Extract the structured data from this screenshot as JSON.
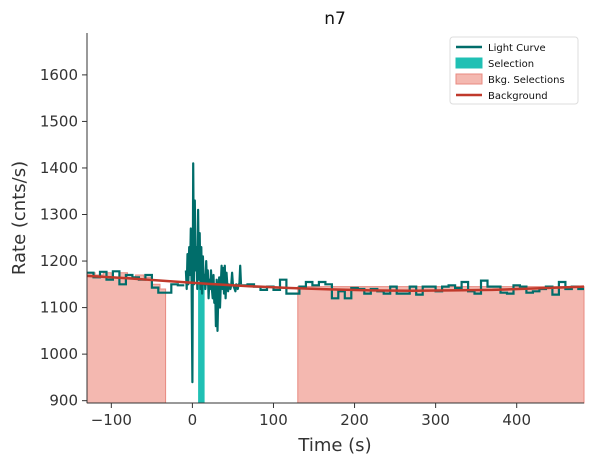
{
  "chart_data": {
    "type": "line",
    "title": "n7",
    "xlabel": "Time (s)",
    "ylabel": "Rate (cnts/s)",
    "xlim": [
      -130,
      483
    ],
    "ylim": [
      895,
      1690
    ],
    "xticks": [
      -100,
      0,
      100,
      200,
      300,
      400
    ],
    "yticks": [
      900,
      1000,
      1100,
      1200,
      1300,
      1400,
      1500,
      1600
    ],
    "grid": false,
    "legend_position": "top-right",
    "legend": [
      {
        "label": "Light Curve",
        "kind": "line",
        "color": "#006d6a"
      },
      {
        "label": "Selection",
        "kind": "patch",
        "color": "#20c0b4"
      },
      {
        "label": "Bkg. Selections",
        "kind": "patch",
        "color": "#f4b8b0"
      },
      {
        "label": "Background",
        "kind": "line",
        "color": "#c0392b"
      }
    ],
    "light_curve": {
      "coarse_before": {
        "edges": [
          -130,
          -122,
          -114,
          -106,
          -98,
          -90,
          -82,
          -74,
          -66,
          -58,
          -50,
          -42,
          -34,
          -26,
          -18,
          -10
        ],
        "rates": [
          1175,
          1165,
          1177,
          1160,
          1178,
          1150,
          1170,
          1165,
          1160,
          1170,
          1143,
          1132,
          1132,
          1150,
          1148
        ]
      },
      "fine": {
        "x": [
          -8,
          -7,
          -6,
          -5,
          -4,
          -3,
          -2,
          -1,
          0,
          1,
          2,
          3,
          4,
          5,
          6,
          7,
          8,
          9,
          10,
          11,
          12,
          13,
          14,
          15,
          16,
          17,
          18,
          19,
          20,
          21,
          22,
          23,
          24,
          25,
          26,
          27,
          28,
          29,
          30,
          31,
          32,
          33,
          34,
          35,
          36,
          37,
          38,
          39,
          40,
          41,
          42,
          43,
          44,
          45,
          46,
          47,
          48,
          49,
          50,
          51,
          52,
          53,
          54,
          55,
          56,
          57,
          58,
          59,
          60
        ],
        "y": [
          1180,
          1140,
          1215,
          1150,
          1230,
          1170,
          1270,
          1150,
          940,
          1410,
          1150,
          1330,
          1180,
          1230,
          1140,
          1310,
          1160,
          1260,
          1140,
          1230,
          1130,
          1210,
          1150,
          1170,
          1140,
          1200,
          1150,
          1180,
          1120,
          1160,
          1140,
          1180,
          1140,
          1120,
          1170,
          1110,
          1150,
          1060,
          1160,
          1050,
          1130,
          1165,
          1100,
          1150,
          1190,
          1140,
          1185,
          1130,
          1190,
          1120,
          1175,
          1150,
          1135,
          1150,
          1145,
          1140,
          1150,
          1175,
          1150,
          1145,
          1140,
          1135,
          1150,
          1145,
          1140,
          1150,
          1150,
          1190,
          1150
        ]
      },
      "coarse_after": {
        "edges": [
          60,
          68,
          76,
          84,
          92,
          100,
          108,
          116,
          124,
          132,
          140,
          148,
          156,
          164,
          172,
          180,
          188,
          196,
          204,
          212,
          220,
          228,
          236,
          244,
          252,
          260,
          268,
          276,
          284,
          292,
          300,
          308,
          316,
          324,
          332,
          340,
          348,
          356,
          364,
          372,
          380,
          388,
          396,
          404,
          412,
          420,
          428,
          436,
          444,
          452,
          460,
          468,
          476,
          483
        ],
        "rates": [
          1148,
          1150,
          1145,
          1138,
          1145,
          1138,
          1160,
          1130,
          1130,
          1145,
          1155,
          1148,
          1155,
          1150,
          1120,
          1135,
          1120,
          1142,
          1140,
          1130,
          1140,
          1135,
          1130,
          1145,
          1130,
          1130,
          1145,
          1128,
          1145,
          1145,
          1135,
          1145,
          1148,
          1142,
          1155,
          1135,
          1130,
          1158,
          1145,
          1145,
          1132,
          1130,
          1148,
          1145,
          1132,
          1135,
          1140,
          1145,
          1128,
          1155,
          1140,
          1145,
          1140
        ]
      }
    },
    "selection": {
      "x_range": [
        7,
        15
      ],
      "lower": 895,
      "upper": 1155
    },
    "bkg_selections": [
      {
        "x_range": [
          -130,
          -33
        ],
        "lower": 895,
        "edges": [
          -130,
          -120,
          -110,
          -100,
          -90,
          -80,
          -70,
          -60,
          -50,
          -40,
          -33
        ],
        "rates": [
          1175,
          1170,
          1175,
          1165,
          1175,
          1165,
          1170,
          1165,
          1150,
          1140
        ]
      },
      {
        "x_range": [
          130,
          483
        ],
        "lower": 895,
        "upper": 1145
      }
    ],
    "background_model": {
      "x": [
        -130,
        -80,
        -30,
        20,
        70,
        120,
        170,
        220,
        270,
        320,
        370,
        420,
        483
      ],
      "y": [
        1168,
        1163,
        1157,
        1151,
        1146,
        1142,
        1139,
        1137,
        1136,
        1137,
        1138,
        1141,
        1145
      ]
    }
  }
}
